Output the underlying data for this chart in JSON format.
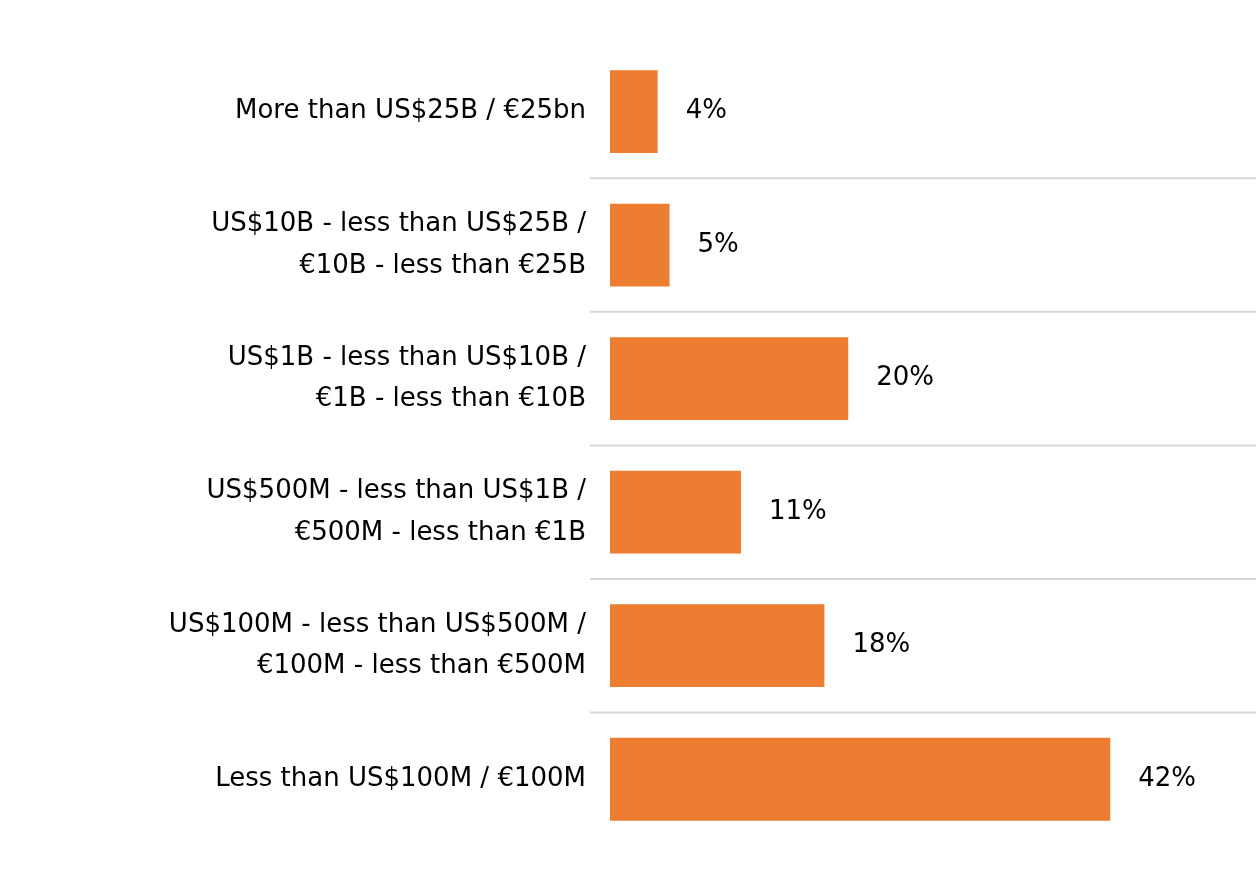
{
  "chart_data": {
    "type": "bar",
    "orientation": "horizontal",
    "categories": [
      "More than US$25B / €25bn",
      "US$10B - less than US$25B / €10B - less than €25B",
      "US$1B - less than US$10B / €1B - less than €10B",
      "US$500M - less than US$1B / €500M - less than €1B",
      "US$100M - less than US$500M / €100M - less than €500M",
      "Less than US$100M / €100M"
    ],
    "values": [
      4,
      5,
      20,
      11,
      18,
      42
    ],
    "value_labels": [
      "4%",
      "5%",
      "20%",
      "11%",
      "18%",
      "42%"
    ],
    "color": "#ed7d31",
    "grid": "y",
    "legend": false
  }
}
